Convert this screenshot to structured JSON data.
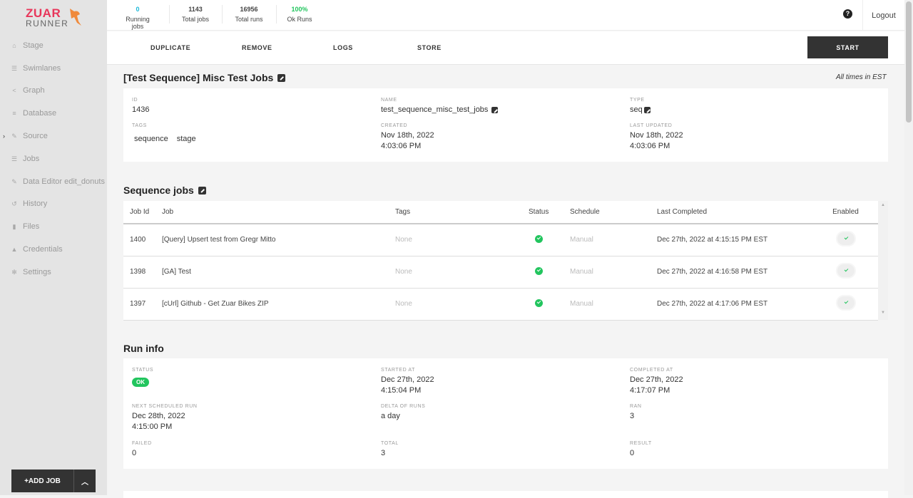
{
  "brand": {
    "line1": "ZUAR",
    "line2": "RUNNER"
  },
  "sidebar": {
    "items": [
      {
        "label": "Stage",
        "icon": "home-icon"
      },
      {
        "label": "Swimlanes",
        "icon": "sliders-icon"
      },
      {
        "label": "Graph",
        "icon": "share-icon"
      },
      {
        "label": "Database",
        "icon": "database-icon"
      },
      {
        "label": "Source",
        "icon": "plug-icon"
      },
      {
        "label": "Jobs",
        "icon": "list-icon"
      },
      {
        "label": "Data Editor edit_donuts",
        "icon": "edit-icon"
      },
      {
        "label": "History",
        "icon": "history-icon"
      },
      {
        "label": "Files",
        "icon": "file-icon"
      },
      {
        "label": "Credentials",
        "icon": "lock-icon"
      },
      {
        "label": "Settings",
        "icon": "gear-icon"
      }
    ],
    "add_job": "+ADD JOB"
  },
  "stats": [
    {
      "value": "0",
      "label": "Running jobs",
      "color": "#1ab8d8"
    },
    {
      "value": "1143",
      "label": "Total jobs",
      "color": "#222222"
    },
    {
      "value": "16956",
      "label": "Total runs",
      "color": "#222222"
    },
    {
      "value": "100%",
      "label": "Ok Runs",
      "color": "#22c55e"
    }
  ],
  "header": {
    "help": "?",
    "logout": "Logout"
  },
  "actions": {
    "duplicate": "DUPLICATE",
    "remove": "REMOVE",
    "logs": "LOGS",
    "store": "STORE",
    "start": "START"
  },
  "job": {
    "title": "[Test Sequence] Misc Test Jobs",
    "timezone_note": "All times in EST",
    "id_label": "ID",
    "id": "1436",
    "name_label": "NAME",
    "name": "test_sequence_misc_test_jobs",
    "type_label": "TYPE",
    "type": "seq",
    "tags_label": "TAGS",
    "tags": [
      "sequence",
      "stage"
    ],
    "created_label": "CREATED",
    "created_date": "Nov 18th, 2022",
    "created_time": "4:03:06 PM",
    "updated_label": "LAST UPDATED",
    "updated_date": "Nov 18th, 2022",
    "updated_time": "4:03:06 PM"
  },
  "sequence": {
    "title": "Sequence jobs",
    "columns": [
      "Job Id",
      "Job",
      "Tags",
      "Status",
      "Schedule",
      "Last Completed",
      "Enabled"
    ],
    "rows": [
      {
        "id": "1400",
        "job": "[Query] Upsert test from Gregr Mitto",
        "tags": "None",
        "status": "ok",
        "schedule": "Manual",
        "last": "Dec 27th, 2022 at 4:15:15 PM EST",
        "enabled": true
      },
      {
        "id": "1398",
        "job": "[GA] Test",
        "tags": "None",
        "status": "ok",
        "schedule": "Manual",
        "last": "Dec 27th, 2022 at 4:16:58 PM EST",
        "enabled": true
      },
      {
        "id": "1397",
        "job": "[cUrl] Github - Get Zuar Bikes ZIP",
        "tags": "None",
        "status": "ok",
        "schedule": "Manual",
        "last": "Dec 27th, 2022 at 4:17:06 PM EST",
        "enabled": true
      }
    ]
  },
  "run": {
    "title": "Run info",
    "status_label": "STATUS",
    "status": "OK",
    "started_label": "STARTED AT",
    "started_date": "Dec 27th, 2022",
    "started_time": "4:15:04 PM",
    "completed_label": "COMPLETED AT",
    "completed_date": "Dec 27th, 2022",
    "completed_time": "4:17:07 PM",
    "next_label": "NEXT SCHEDULED RUN",
    "next_date": "Dec 28th, 2022",
    "next_time": "4:15:00 PM",
    "delta_label": "DELTA OF RUNS",
    "delta": "a day",
    "ran_label": "RAN",
    "ran": "3",
    "failed_label": "FAILED",
    "failed": "0",
    "total_label": "TOTAL",
    "total": "3",
    "result_label": "RESULT",
    "result": "0"
  }
}
